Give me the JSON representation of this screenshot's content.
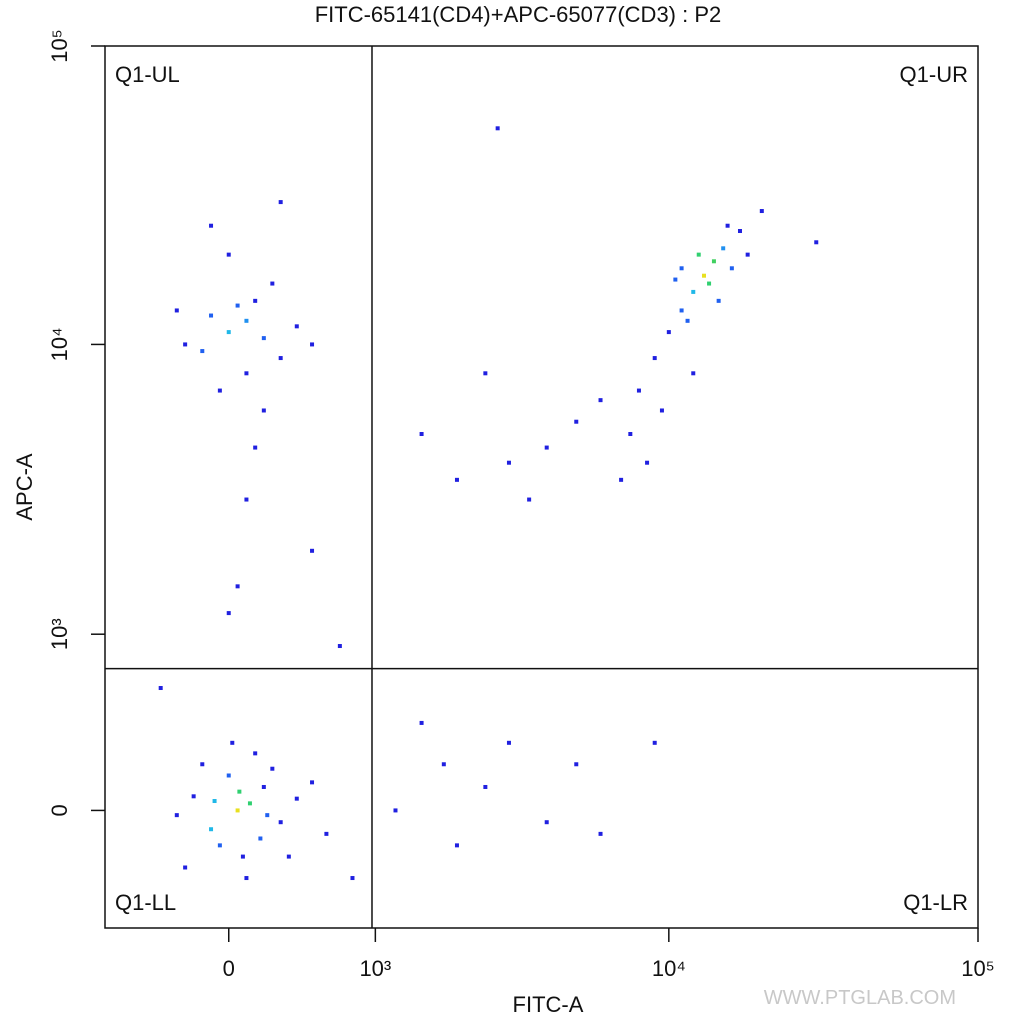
{
  "chart_data": {
    "type": "scatter",
    "title": "FITC-65141(CD4)+APC-65077(CD3) : P2",
    "x_label": "FITC-A",
    "y_label": "APC-A",
    "xscale": "biexponential",
    "yscale": "biexponential",
    "xlim": [
      -800,
      100000
    ],
    "ylim": [
      -570,
      100000
    ],
    "xticks": [
      0,
      {
        "value": 1000,
        "label": "10³"
      },
      {
        "value": 10000,
        "label": "10⁴"
      },
      {
        "value": 100000,
        "label": "10⁵"
      }
    ],
    "yticks": [
      0,
      {
        "value": 1000,
        "label": "10³"
      },
      {
        "value": 10000,
        "label": "10⁴"
      },
      {
        "value": 100000,
        "label": "10⁵"
      }
    ],
    "gate": {
      "x": 969,
      "y": 729,
      "labels": [
        "Q1-UL",
        "Q1-UR",
        "Q1-LL",
        "Q1-LR"
      ]
    },
    "watermark": "WWW.PTGLAB.COM",
    "x": [
      50,
      120,
      -100,
      200,
      0,
      300,
      -200,
      80,
      150,
      -50,
      250,
      400,
      -300,
      100,
      350,
      -150,
      500,
      20,
      600,
      -250,
      180,
      60,
      -80,
      220,
      0,
      100,
      -150,
      200,
      50,
      300,
      -100,
      150,
      400,
      -250,
      100,
      250,
      -50,
      500,
      0,
      200,
      -300,
      150,
      100,
      -100,
      300,
      50,
      0,
      13000,
      14000,
      12000,
      15000,
      11000,
      16000,
      12500,
      10000,
      17000,
      13500,
      9000,
      11500,
      8000,
      14500,
      10500,
      18000,
      9500,
      7500,
      12000,
      15500,
      20000,
      8500,
      7000,
      11000,
      6000,
      5000,
      4000,
      3000,
      2000,
      1500,
      3500,
      2500,
      1800,
      2500,
      4000,
      3000,
      5000,
      1500,
      6000,
      9000,
      1200,
      2000,
      2750,
      500,
      700,
      -400,
      800,
      30000
    ],
    "y": [
      0,
      30,
      -80,
      100,
      150,
      -50,
      60,
      -200,
      250,
      -150,
      180,
      50,
      -20,
      -300,
      -200,
      200,
      120,
      300,
      -100,
      -250,
      -120,
      80,
      40,
      -20,
      11000,
      12000,
      9500,
      10500,
      13500,
      9000,
      12500,
      14000,
      11500,
      10000,
      8000,
      16000,
      7000,
      10000,
      20000,
      6000,
      13000,
      4500,
      3000,
      25000,
      30000,
      1500,
      1200,
      17000,
      19000,
      15000,
      21000,
      13000,
      18000,
      20000,
      11000,
      24000,
      16000,
      9000,
      12000,
      7000,
      14000,
      16500,
      20000,
      6000,
      5000,
      8000,
      25000,
      28000,
      4000,
      3500,
      18000,
      6500,
      5500,
      4500,
      4000,
      3500,
      5000,
      3000,
      8000,
      200,
      100,
      -50,
      300,
      200,
      400,
      -100,
      300,
      0,
      -150,
      53000,
      2000,
      900,
      600,
      -300,
      22000
    ],
    "colors": [
      "#e8e020",
      "#30d070",
      "#20b8e8",
      "#2020e0",
      "#2060f0",
      "#2020e0",
      "#2020e0",
      "#2020e0",
      "#2020e0",
      "#2060f0",
      "#2020e0",
      "#2020e0",
      "#2020e0",
      "#2020e0",
      "#2020e0",
      "#2020e0",
      "#2020e0",
      "#2020e0",
      "#2020e0",
      "#2020e0",
      "#2060f0",
      "#30d070",
      "#20b8e8",
      "#2060f0",
      "#20b8e8",
      "#2090f0",
      "#2060f0",
      "#2060f0",
      "#2060f0",
      "#2020e0",
      "#2060f0",
      "#2020e0",
      "#2020e0",
      "#2020e0",
      "#2020e0",
      "#2020e0",
      "#2020e0",
      "#2020e0",
      "#2020e0",
      "#2020e0",
      "#2020e0",
      "#2020e0",
      "#2020e0",
      "#2020e0",
      "#2020e0",
      "#2020e0",
      "#2020e0",
      "#e8e020",
      "#40d060",
      "#20b8e8",
      "#2090f0",
      "#2060f0",
      "#2060f0",
      "#30d070",
      "#2020e0",
      "#2020e0",
      "#30d070",
      "#2020e0",
      "#2060f0",
      "#2020e0",
      "#2060f0",
      "#2060f0",
      "#2020e0",
      "#2020e0",
      "#2020e0",
      "#2020e0",
      "#2020e0",
      "#2020e0",
      "#2020e0",
      "#2020e0",
      "#2060f0",
      "#2020e0",
      "#2020e0",
      "#2020e0",
      "#2020e0",
      "#2020e0",
      "#2020e0",
      "#2020e0",
      "#2020e0",
      "#2020e0",
      "#2020e0",
      "#2020e0",
      "#2020e0",
      "#2020e0",
      "#2020e0",
      "#2020e0",
      "#2020e0",
      "#2020e0",
      "#2020e0",
      "#2020e0",
      "#2020e0",
      "#2020e0",
      "#2020e0",
      "#2020e0",
      "#2020e0"
    ]
  }
}
